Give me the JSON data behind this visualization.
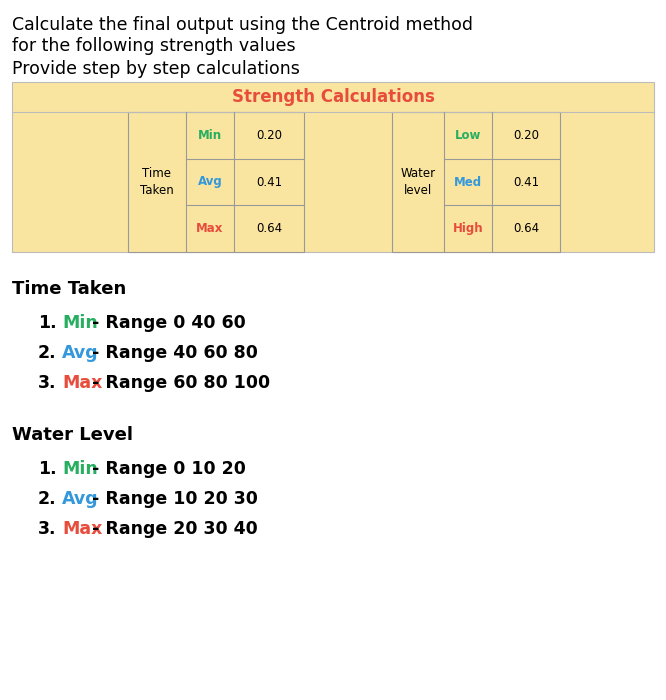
{
  "title_line1": "Calculate the final output using the Centroid method",
  "title_line2": "for the following strength values",
  "subtitle": "Provide step by step calculations",
  "table_header": "Strength Calculations",
  "table_header_color": "#E74C3C",
  "table_bg_color": "#FAE5A0",
  "left_label": "Time\nTaken",
  "left_rows": [
    {
      "label": "Min",
      "label_color": "#27AE60",
      "value": "0.20"
    },
    {
      "label": "Avg",
      "label_color": "#3498DB",
      "value": "0.41"
    },
    {
      "label": "Max",
      "label_color": "#E74C3C",
      "value": "0.64"
    }
  ],
  "right_label": "Water\nlevel",
  "right_rows": [
    {
      "label": "Low",
      "label_color": "#27AE60",
      "value": "0.20"
    },
    {
      "label": "Med",
      "label_color": "#3498DB",
      "value": "0.41"
    },
    {
      "label": "High",
      "label_color": "#E74C3C",
      "value": "0.64"
    }
  ],
  "section1_title": "Time Taken",
  "section1_items": [
    {
      "num": "1.",
      "label": "Min",
      "label_color": "#27AE60",
      "rest": " - Range 0 40 60"
    },
    {
      "num": "2.",
      "label": "Avg",
      "label_color": "#3498DB",
      "rest": " - Range 40 60 80"
    },
    {
      "num": "3.",
      "label": "Max",
      "label_color": "#E74C3C",
      "rest": " - Range 60 80 100"
    }
  ],
  "section2_title": "Water Level",
  "section2_items": [
    {
      "num": "1.",
      "label": "Min",
      "label_color": "#27AE60",
      "rest": " - Range 0 10 20"
    },
    {
      "num": "2.",
      "label": "Avg",
      "label_color": "#3498DB",
      "rest": " - Range 10 20 30"
    },
    {
      "num": "3.",
      "label": "Max",
      "label_color": "#E74C3C",
      "rest": " - Range 20 30 40"
    }
  ],
  "bg_color": "#FFFFFF",
  "text_color": "#000000",
  "cell_border_color": "#999999",
  "outer_border_color": "#BBBBBB"
}
